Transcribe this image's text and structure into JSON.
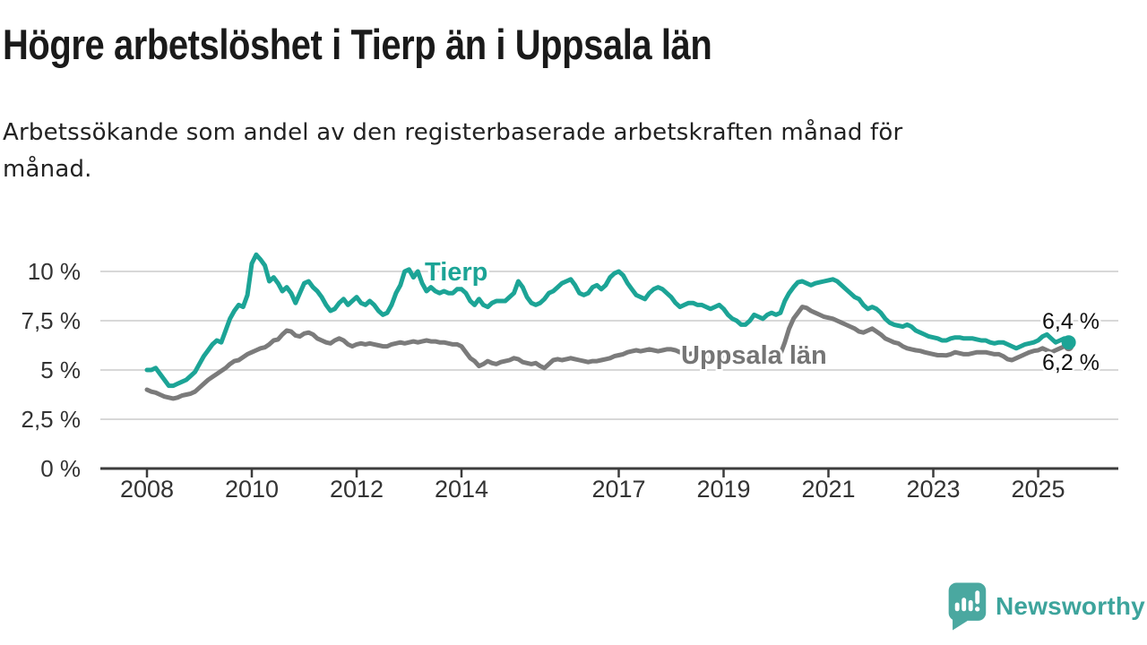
{
  "header": {
    "title": "Högre arbetslöshet i Tierp än i Uppsala län",
    "subtitle_line1": "Arbetssökande som andel av den registerbaserade arbetskraften månad för",
    "subtitle_line2": "månad."
  },
  "branding": {
    "logo_text": "Newsworthy",
    "logo_icon": "speech-bubble-bar-chart",
    "logo_color": "#4aa8a0"
  },
  "colors": {
    "tierp_line": "#1ca496",
    "uppsala_line": "#7b7b7b",
    "gridline": "#d8d8d8",
    "axis": "#3c3c3c",
    "tick_text": "#333333",
    "title_text": "#1a1a1a"
  },
  "annotations": {
    "tierp_label": "Tierp",
    "uppsala_label": "Uppsala län",
    "tierp_end_label": "6,4 %",
    "uppsala_end_label": "6,2 %"
  },
  "chart_data": {
    "type": "line",
    "title": "Högre arbetslöshet i Tierp än i Uppsala län",
    "subtitle": "Arbetssökande som andel av den registerbaserade arbetskraften månad för månad.",
    "unit": "percent of registered labour force",
    "frequency": "monthly",
    "start": "2008-01",
    "end": "2025-08",
    "grid": "horizontal",
    "legend": "inline-labels",
    "ylim": [
      0,
      11.6
    ],
    "x_ticks": [
      2008,
      2010,
      2012,
      2014,
      2017,
      2019,
      2021,
      2023,
      2025
    ],
    "y_ticks": [
      {
        "value": 10,
        "label": "10 %"
      },
      {
        "value": 7.5,
        "label": "7,5 %"
      },
      {
        "value": 5,
        "label": "5 %"
      },
      {
        "value": 2.5,
        "label": "2,5 %"
      },
      {
        "value": 0,
        "label": "0 %"
      }
    ],
    "series": [
      {
        "name": "Uppsala län",
        "color": "#7b7b7b",
        "end_value": 6.2,
        "end_label": "6,2 %",
        "values": [
          4.0,
          3.9,
          3.85,
          3.75,
          3.65,
          3.6,
          3.55,
          3.6,
          3.7,
          3.75,
          3.8,
          3.9,
          4.1,
          4.3,
          4.5,
          4.65,
          4.8,
          4.95,
          5.1,
          5.3,
          5.45,
          5.5,
          5.65,
          5.8,
          5.9,
          6.0,
          6.1,
          6.15,
          6.3,
          6.5,
          6.55,
          6.8,
          7.0,
          6.95,
          6.75,
          6.7,
          6.85,
          6.9,
          6.8,
          6.6,
          6.5,
          6.4,
          6.35,
          6.5,
          6.6,
          6.5,
          6.3,
          6.2,
          6.3,
          6.35,
          6.3,
          6.35,
          6.3,
          6.25,
          6.2,
          6.2,
          6.3,
          6.35,
          6.4,
          6.35,
          6.4,
          6.45,
          6.4,
          6.45,
          6.5,
          6.45,
          6.45,
          6.4,
          6.4,
          6.35,
          6.3,
          6.3,
          6.2,
          5.9,
          5.6,
          5.45,
          5.2,
          5.3,
          5.45,
          5.35,
          5.3,
          5.4,
          5.45,
          5.5,
          5.6,
          5.55,
          5.4,
          5.35,
          5.3,
          5.35,
          5.2,
          5.1,
          5.3,
          5.5,
          5.55,
          5.5,
          5.55,
          5.6,
          5.55,
          5.5,
          5.45,
          5.4,
          5.45,
          5.45,
          5.5,
          5.55,
          5.6,
          5.7,
          5.75,
          5.8,
          5.9,
          5.95,
          6.0,
          5.95,
          6.0,
          6.05,
          6.0,
          5.95,
          6.0,
          6.05,
          6.05,
          6.0,
          5.9,
          5.85,
          5.8,
          5.85,
          5.8,
          5.75,
          5.7,
          5.7,
          5.65,
          5.7,
          5.65,
          5.6,
          5.5,
          5.45,
          5.4,
          5.45,
          5.5,
          5.55,
          5.5,
          5.55,
          5.6,
          5.65,
          5.7,
          5.8,
          6.4,
          7.1,
          7.6,
          7.9,
          8.2,
          8.15,
          8.0,
          7.9,
          7.8,
          7.7,
          7.65,
          7.6,
          7.5,
          7.4,
          7.3,
          7.2,
          7.1,
          6.95,
          6.9,
          7.0,
          7.1,
          6.95,
          6.8,
          6.6,
          6.5,
          6.4,
          6.35,
          6.2,
          6.1,
          6.05,
          6.0,
          5.97,
          5.9,
          5.85,
          5.8,
          5.75,
          5.75,
          5.74,
          5.8,
          5.9,
          5.85,
          5.8,
          5.8,
          5.85,
          5.9,
          5.9,
          5.9,
          5.85,
          5.8,
          5.8,
          5.7,
          5.55,
          5.5,
          5.6,
          5.7,
          5.8,
          5.9,
          5.97,
          6.0,
          6.1,
          6.0,
          5.9,
          6.0,
          6.1,
          6.2,
          6.2
        ]
      },
      {
        "name": "Tierp",
        "color": "#1ca496",
        "end_value": 6.4,
        "end_label": "6,4 %",
        "values": [
          5.0,
          5.0,
          5.1,
          4.8,
          4.5,
          4.2,
          4.2,
          4.3,
          4.4,
          4.5,
          4.7,
          4.9,
          5.3,
          5.7,
          6.0,
          6.3,
          6.5,
          6.4,
          7.0,
          7.6,
          8.0,
          8.3,
          8.2,
          8.8,
          10.4,
          10.85,
          10.6,
          10.3,
          9.5,
          9.7,
          9.4,
          9.0,
          9.2,
          8.9,
          8.4,
          8.9,
          9.4,
          9.5,
          9.2,
          9.0,
          8.7,
          8.3,
          8.0,
          8.1,
          8.4,
          8.6,
          8.3,
          8.5,
          8.7,
          8.4,
          8.3,
          8.5,
          8.3,
          8.0,
          7.8,
          7.9,
          8.3,
          8.9,
          9.3,
          10.0,
          10.1,
          9.7,
          10.0,
          9.4,
          9.0,
          9.2,
          9.0,
          8.9,
          9.0,
          8.9,
          8.9,
          9.1,
          9.1,
          8.9,
          8.5,
          8.3,
          8.6,
          8.3,
          8.2,
          8.4,
          8.5,
          8.5,
          8.5,
          8.7,
          8.9,
          9.5,
          9.2,
          8.7,
          8.4,
          8.3,
          8.4,
          8.6,
          8.9,
          9.0,
          9.2,
          9.4,
          9.5,
          9.6,
          9.3,
          8.9,
          8.8,
          8.9,
          9.2,
          9.3,
          9.1,
          9.3,
          9.7,
          9.9,
          10.0,
          9.8,
          9.4,
          9.1,
          8.8,
          8.7,
          8.6,
          8.9,
          9.1,
          9.2,
          9.1,
          8.9,
          8.7,
          8.4,
          8.2,
          8.3,
          8.4,
          8.4,
          8.3,
          8.3,
          8.2,
          8.1,
          8.2,
          8.3,
          8.1,
          7.8,
          7.6,
          7.5,
          7.3,
          7.3,
          7.5,
          7.8,
          7.7,
          7.6,
          7.8,
          7.9,
          7.8,
          7.9,
          8.5,
          8.9,
          9.2,
          9.45,
          9.5,
          9.4,
          9.3,
          9.4,
          9.45,
          9.5,
          9.55,
          9.6,
          9.5,
          9.3,
          9.1,
          8.9,
          8.7,
          8.6,
          8.3,
          8.1,
          8.2,
          8.1,
          7.9,
          7.6,
          7.4,
          7.3,
          7.25,
          7.2,
          7.3,
          7.2,
          7.0,
          6.9,
          6.8,
          6.7,
          6.65,
          6.6,
          6.5,
          6.5,
          6.6,
          6.65,
          6.65,
          6.6,
          6.6,
          6.6,
          6.55,
          6.5,
          6.5,
          6.4,
          6.35,
          6.4,
          6.4,
          6.3,
          6.2,
          6.1,
          6.2,
          6.3,
          6.35,
          6.4,
          6.5,
          6.7,
          6.8,
          6.6,
          6.4,
          6.5,
          6.6,
          6.4
        ]
      }
    ]
  }
}
